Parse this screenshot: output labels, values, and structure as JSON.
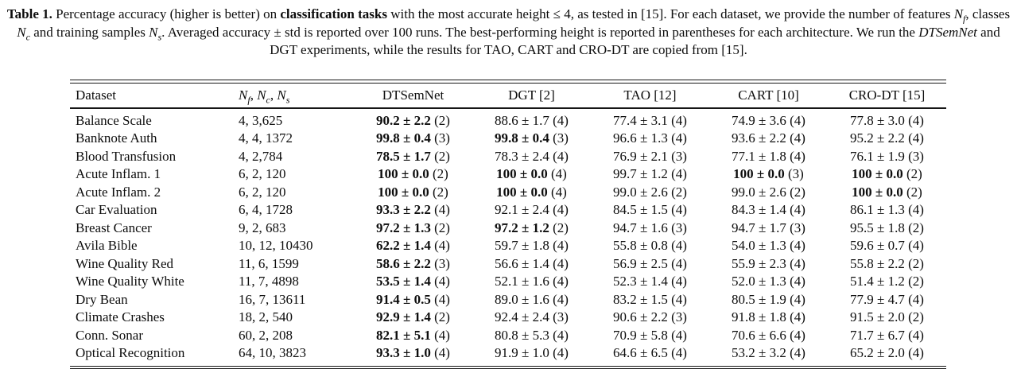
{
  "caption": {
    "label": "Table 1.",
    "seg1": "  Percentage accuracy (higher is better) on ",
    "bold1": "classification tasks",
    "seg2": " with the most accurate height ≤ 4, as tested in [15]. For each dataset, we provide the number of features ",
    "var1": "N",
    "sub1": "f",
    "seg3": ", classes ",
    "var2": "N",
    "sub2": "c",
    "seg4": " and training samples ",
    "var3": "N",
    "sub3": "s",
    "seg5": ". Averaged accuracy ± std is reported over 100 runs. The best-performing height is reported in parentheses for each architecture. We run the ",
    "ital1": "DTSemNet",
    "seg6": " and DGT experiments, while the results for TAO, CART and CRO-DT are copied from [15]."
  },
  "table": {
    "header": {
      "dataset": "Dataset",
      "features": {
        "v1": "N",
        "s1": "f",
        "c1": ", ",
        "v2": "N",
        "s2": "c",
        "c2": ", ",
        "v3": "N",
        "s3": "s"
      },
      "methods": [
        "DTSemNet",
        "DGT [2]",
        "TAO [12]",
        "CART [10]",
        "CRO-DT [15]"
      ]
    },
    "rows": [
      {
        "dataset": "Balance Scale",
        "stats": "4, 3,625",
        "results": [
          {
            "v": "90.2 ± 2.2",
            "h": "(2)",
            "bold": true
          },
          {
            "v": "88.6 ± 1.7",
            "h": "(4)",
            "bold": false
          },
          {
            "v": "77.4 ± 3.1",
            "h": "(4)",
            "bold": false
          },
          {
            "v": "74.9 ± 3.6",
            "h": "(4)",
            "bold": false
          },
          {
            "v": "77.8 ± 3.0",
            "h": "(4)",
            "bold": false
          }
        ]
      },
      {
        "dataset": "Banknote Auth",
        "stats": "4, 4, 1372",
        "results": [
          {
            "v": "99.8 ± 0.4",
            "h": "(3)",
            "bold": true
          },
          {
            "v": "99.8 ± 0.4",
            "h": "(3)",
            "bold": true
          },
          {
            "v": "96.6 ± 1.3",
            "h": "(4)",
            "bold": false
          },
          {
            "v": "93.6 ± 2.2",
            "h": "(4)",
            "bold": false
          },
          {
            "v": "95.2 ± 2.2",
            "h": "(4)",
            "bold": false
          }
        ]
      },
      {
        "dataset": "Blood Transfusion",
        "stats": "4, 2,784",
        "results": [
          {
            "v": "78.5 ± 1.7",
            "h": "(2)",
            "bold": true
          },
          {
            "v": "78.3 ± 2.4",
            "h": "(4)",
            "bold": false
          },
          {
            "v": "76.9 ± 2.1",
            "h": "(3)",
            "bold": false
          },
          {
            "v": "77.1 ± 1.8",
            "h": "(4)",
            "bold": false
          },
          {
            "v": "76.1 ± 1.9",
            "h": "(3)",
            "bold": false
          }
        ]
      },
      {
        "dataset": "Acute Inflam. 1",
        "stats": "6, 2, 120",
        "results": [
          {
            "v": "100 ± 0.0",
            "h": "(2)",
            "bold": true
          },
          {
            "v": "100 ± 0.0",
            "h": "(4)",
            "bold": true
          },
          {
            "v": "99.7 ± 1.2",
            "h": "(4)",
            "bold": false
          },
          {
            "v": "100 ± 0.0",
            "h": "(3)",
            "bold": true
          },
          {
            "v": "100 ± 0.0",
            "h": "(2)",
            "bold": true
          }
        ]
      },
      {
        "dataset": "Acute Inflam. 2",
        "stats": "6, 2, 120",
        "results": [
          {
            "v": "100 ± 0.0",
            "h": "(2)",
            "bold": true
          },
          {
            "v": "100 ± 0.0",
            "h": "(4)",
            "bold": true
          },
          {
            "v": "99.0 ± 2.6",
            "h": "(2)",
            "bold": false
          },
          {
            "v": "99.0 ± 2.6",
            "h": "(2)",
            "bold": false
          },
          {
            "v": "100 ± 0.0",
            "h": "(2)",
            "bold": true
          }
        ]
      },
      {
        "dataset": "Car Evaluation",
        "stats": "6, 4, 1728",
        "results": [
          {
            "v": "93.3 ± 2.2",
            "h": "(4)",
            "bold": true
          },
          {
            "v": "92.1 ± 2.4",
            "h": "(4)",
            "bold": false
          },
          {
            "v": "84.5 ± 1.5",
            "h": "(4)",
            "bold": false
          },
          {
            "v": "84.3 ± 1.4",
            "h": "(4)",
            "bold": false
          },
          {
            "v": "86.1 ± 1.3",
            "h": "(4)",
            "bold": false
          }
        ]
      },
      {
        "dataset": "Breast Cancer",
        "stats": "9, 2, 683",
        "results": [
          {
            "v": "97.2 ± 1.3",
            "h": "(2)",
            "bold": true
          },
          {
            "v": "97.2 ± 1.2",
            "h": "(2)",
            "bold": true
          },
          {
            "v": "94.7 ± 1.6",
            "h": "(3)",
            "bold": false
          },
          {
            "v": "94.7 ± 1.7",
            "h": "(3)",
            "bold": false
          },
          {
            "v": "95.5 ± 1.8",
            "h": "(2)",
            "bold": false
          }
        ]
      },
      {
        "dataset": "Avila Bible",
        "stats": "10, 12, 10430",
        "results": [
          {
            "v": "62.2 ± 1.4",
            "h": "(4)",
            "bold": true
          },
          {
            "v": "59.7 ± 1.8",
            "h": "(4)",
            "bold": false
          },
          {
            "v": "55.8 ± 0.8",
            "h": "(4)",
            "bold": false
          },
          {
            "v": "54.0 ± 1.3",
            "h": "(4)",
            "bold": false
          },
          {
            "v": "59.6 ± 0.7",
            "h": "(4)",
            "bold": false
          }
        ]
      },
      {
        "dataset": "Wine Quality Red",
        "stats": "11, 6, 1599",
        "results": [
          {
            "v": "58.6 ± 2.2",
            "h": "(3)",
            "bold": true
          },
          {
            "v": "56.6 ± 1.4",
            "h": "(4)",
            "bold": false
          },
          {
            "v": "56.9 ± 2.5",
            "h": "(4)",
            "bold": false
          },
          {
            "v": "55.9 ± 2.3",
            "h": "(4)",
            "bold": false
          },
          {
            "v": "55.8 ± 2.2",
            "h": "(2)",
            "bold": false
          }
        ]
      },
      {
        "dataset": "Wine Quality White",
        "stats": "11, 7, 4898",
        "results": [
          {
            "v": "53.5 ± 1.4",
            "h": "(4)",
            "bold": true
          },
          {
            "v": "52.1 ± 1.6",
            "h": "(4)",
            "bold": false
          },
          {
            "v": "52.3 ± 1.4",
            "h": "(4)",
            "bold": false
          },
          {
            "v": "52.0 ± 1.3",
            "h": "(4)",
            "bold": false
          },
          {
            "v": "51.4 ± 1.2",
            "h": "(2)",
            "bold": false
          }
        ]
      },
      {
        "dataset": "Dry Bean",
        "stats": "16, 7, 13611",
        "results": [
          {
            "v": "91.4 ± 0.5",
            "h": "(4)",
            "bold": true
          },
          {
            "v": "89.0 ± 1.6",
            "h": "(4)",
            "bold": false
          },
          {
            "v": "83.2 ± 1.5",
            "h": "(4)",
            "bold": false
          },
          {
            "v": "80.5 ± 1.9",
            "h": "(4)",
            "bold": false
          },
          {
            "v": "77.9 ± 4.7",
            "h": "(4)",
            "bold": false
          }
        ]
      },
      {
        "dataset": "Climate Crashes",
        "stats": "18, 2, 540",
        "results": [
          {
            "v": "92.9 ± 1.4",
            "h": "(2)",
            "bold": true
          },
          {
            "v": "92.4 ± 2.4",
            "h": "(3)",
            "bold": false
          },
          {
            "v": "90.6 ± 2.2",
            "h": "(3)",
            "bold": false
          },
          {
            "v": "91.8 ± 1.8",
            "h": "(4)",
            "bold": false
          },
          {
            "v": "91.5 ± 2.0",
            "h": "(2)",
            "bold": false
          }
        ]
      },
      {
        "dataset": "Conn. Sonar",
        "stats": "60, 2, 208",
        "results": [
          {
            "v": "82.1 ± 5.1",
            "h": "(4)",
            "bold": true
          },
          {
            "v": "80.8 ± 5.3",
            "h": "(4)",
            "bold": false
          },
          {
            "v": "70.9 ± 5.8",
            "h": "(4)",
            "bold": false
          },
          {
            "v": "70.6 ± 6.6",
            "h": "(4)",
            "bold": false
          },
          {
            "v": "71.7 ± 6.7",
            "h": "(4)",
            "bold": false
          }
        ]
      },
      {
        "dataset": "Optical Recognition",
        "stats": "64, 10, 3823",
        "results": [
          {
            "v": "93.3 ± 1.0",
            "h": "(4)",
            "bold": true
          },
          {
            "v": "91.9 ± 1.0",
            "h": "(4)",
            "bold": false
          },
          {
            "v": "64.6 ± 6.5",
            "h": "(4)",
            "bold": false
          },
          {
            "v": "53.2 ± 3.2",
            "h": "(4)",
            "bold": false
          },
          {
            "v": "65.2 ± 2.0",
            "h": "(4)",
            "bold": false
          }
        ]
      }
    ]
  }
}
